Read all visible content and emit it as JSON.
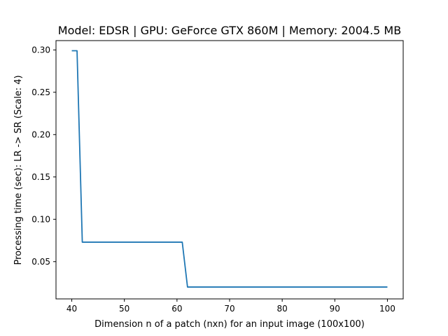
{
  "chart_data": {
    "type": "line",
    "title": "Model: EDSR | GPU: GeForce GTX 860M | Memory: 2004.5 MB",
    "xlabel": "Dimension n of a patch (nxn) for an input image (100x100)",
    "ylabel": "Processing time (sec): LR -> SR (Scale: 4)",
    "xlim": [
      37,
      103
    ],
    "ylim": [
      0.006,
      0.311
    ],
    "xticks": [
      40,
      50,
      60,
      70,
      80,
      90,
      100
    ],
    "yticks": [
      0.05,
      0.1,
      0.15,
      0.2,
      0.25,
      0.3
    ],
    "xtick_labels": [
      "40",
      "50",
      "60",
      "70",
      "80",
      "90",
      "100"
    ],
    "ytick_labels": [
      "0.05",
      "0.10",
      "0.15",
      "0.20",
      "0.25",
      "0.30"
    ],
    "grid": false,
    "colors": {
      "line": "#1f77b4"
    },
    "series": [
      {
        "x": [
          40,
          41,
          42,
          43,
          44,
          45,
          50,
          55,
          60,
          61,
          62,
          63,
          70,
          80,
          90,
          100
        ],
        "y": [
          0.299,
          0.299,
          0.073,
          0.073,
          0.073,
          0.073,
          0.073,
          0.073,
          0.073,
          0.073,
          0.02,
          0.02,
          0.02,
          0.02,
          0.02,
          0.02
        ]
      }
    ]
  }
}
